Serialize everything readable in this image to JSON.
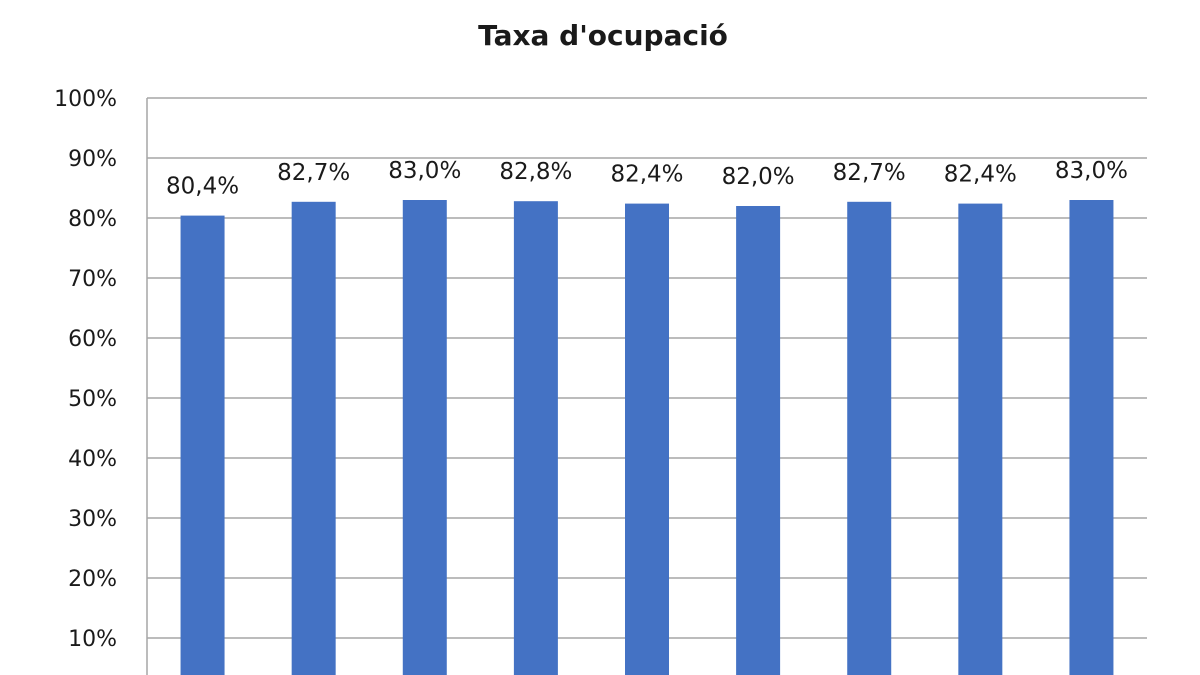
{
  "chart_data": {
    "type": "bar",
    "title": "Taxa d'ocupació",
    "xlabel": "",
    "ylabel": "",
    "categories": [
      "",
      "",
      "",
      "",
      "",
      "",
      "",
      "",
      ""
    ],
    "values": [
      80.4,
      82.7,
      83.0,
      82.8,
      82.4,
      82.0,
      82.7,
      82.4,
      83.0
    ],
    "data_labels": [
      "80,4%",
      "82,7%",
      "83,0%",
      "82,8%",
      "82,4%",
      "82,0%",
      "82,7%",
      "82,4%",
      "83,0%"
    ],
    "y_ticks": [
      10,
      20,
      30,
      40,
      50,
      60,
      70,
      80,
      90,
      100
    ],
    "y_tick_labels": [
      "10%",
      "20%",
      "30%",
      "40%",
      "50%",
      "60%",
      "70%",
      "80%",
      "90%",
      "100%"
    ],
    "ylim": [
      0,
      100
    ],
    "grid": true,
    "legend": "none",
    "bar_color": "#4472c4",
    "grid_color": "#a6a6a6"
  }
}
